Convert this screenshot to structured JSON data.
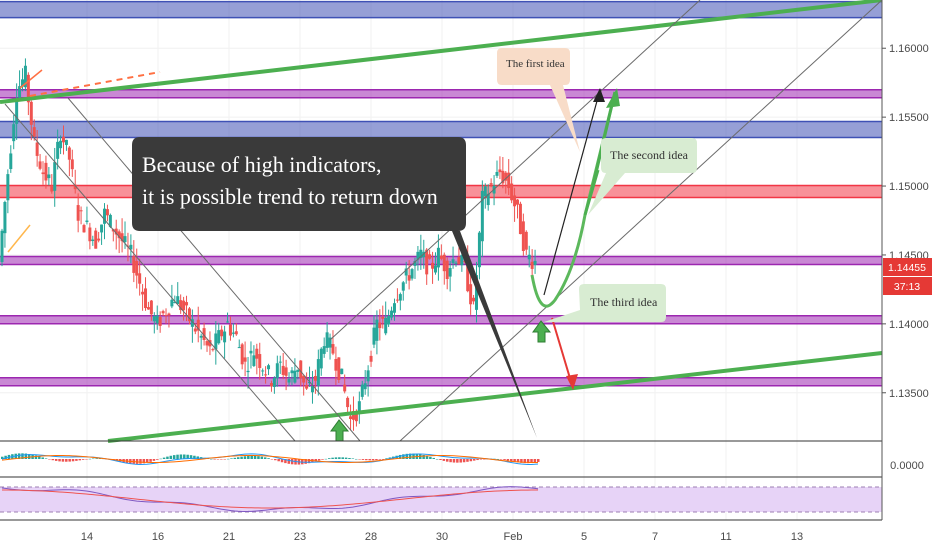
{
  "chart_data": {
    "type": "candlestick",
    "y_axis_ticks": [
      "1.16000",
      "1.15500",
      "1.15000",
      "1.14500",
      "1.14000",
      "1.13500"
    ],
    "x_axis_ticks": [
      "14",
      "16",
      "21",
      "23",
      "28",
      "30",
      "Feb",
      "5",
      "7",
      "11",
      "13"
    ],
    "ylim": [
      1.1315,
      1.1635
    ],
    "price_label": "1.14455",
    "countdown_label": "37:13",
    "oscillator_label": "0.0000",
    "price_series_approx": [
      1.1445,
      1.151,
      1.157,
      1.158,
      1.153,
      1.151,
      1.15,
      1.154,
      1.152,
      1.148,
      1.147,
      1.146,
      1.148,
      1.147,
      1.146,
      1.145,
      1.143,
      1.141,
      1.14,
      1.141,
      1.142,
      1.141,
      1.14,
      1.139,
      1.138,
      1.139,
      1.14,
      1.139,
      1.137,
      1.138,
      1.137,
      1.136,
      1.137,
      1.136,
      1.137,
      1.135,
      1.136,
      1.139,
      1.138,
      1.136,
      1.133,
      1.134,
      1.137,
      1.14,
      1.14,
      1.142,
      1.143,
      1.144,
      1.145,
      1.144,
      1.145,
      1.144,
      1.145,
      1.144,
      1.141,
      1.149,
      1.15,
      1.151,
      1.15,
      1.148,
      1.145,
      1.1445
    ],
    "horizontal_levels": [
      {
        "value": 1.1628,
        "style": "blue-band"
      },
      {
        "value": 1.1567,
        "style": "purple-band"
      },
      {
        "value": 1.1541,
        "style": "blue-band"
      },
      {
        "value": 1.1496,
        "style": "red-band"
      },
      {
        "value": 1.1446,
        "style": "purple-band"
      },
      {
        "value": 1.1403,
        "style": "purple-band"
      },
      {
        "value": 1.1358,
        "style": "purple-band"
      }
    ],
    "annotations": {
      "main": [
        "Because of high indicators,",
        "it is possible trend to return down"
      ],
      "idea1": "The first idea",
      "idea2": "The second idea",
      "idea3": "The third idea"
    }
  },
  "colors": {
    "blue_band": "#3f51b5",
    "purple_band": "#9c27b0",
    "red_band": "#f23645",
    "trend_green": "#4caf50",
    "candle_up": "#26a69a",
    "candle_down": "#ef5350",
    "callout_dark": "#3a3a3a",
    "callout_peach": "#f5d9c7",
    "callout_green": "#d8ecd2"
  }
}
